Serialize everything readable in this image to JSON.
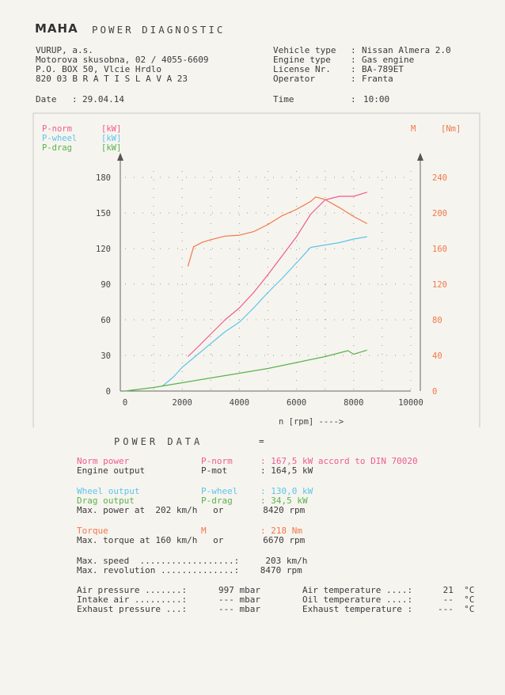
{
  "header": {
    "logo": "MAHA",
    "title": "POWER DIAGNOSTIC",
    "company": [
      "VURUP, a.s.",
      "Motorova skusobna, 02 / 4055-6609",
      "P.O. BOX 50, Vlcie Hrdlo",
      "820 03 B R A T I S L A V A 23"
    ],
    "date_label": "Date",
    "date_value": "29.04.14",
    "vehicle_fields": [
      {
        "label": "Vehicle type",
        "value": "Nissan Almera 2.0"
      },
      {
        "label": "Engine type",
        "value": "Gas engine"
      },
      {
        "label": "License Nr.",
        "value": "BA-789ET"
      },
      {
        "label": "Operator",
        "value": "Franta"
      }
    ],
    "time_label": "Time",
    "time_value": "10:00"
  },
  "chart_data": {
    "type": "line",
    "legend": [
      {
        "name": "P-norm",
        "unit": "[kW]",
        "color": "#ee5c8e"
      },
      {
        "name": "P-wheel",
        "unit": "[kW]",
        "color": "#5cc5ea"
      },
      {
        "name": "P-drag",
        "unit": "[kW]",
        "color": "#59b34c"
      }
    ],
    "right_axis_label": "M",
    "right_axis_unit": "[Nm]",
    "xlabel": "n [rpm] ---->",
    "xlim": [
      0,
      10000
    ],
    "ylim_left": [
      0,
      180
    ],
    "ylim_right": [
      0,
      240
    ],
    "x_ticks": [
      "0",
      "2000",
      "4000",
      "6000",
      "8000",
      "10000"
    ],
    "y_ticks_left": [
      "0",
      "30",
      "60",
      "90",
      "120",
      "150",
      "180"
    ],
    "y_ticks_right": [
      "0",
      "40",
      "80",
      "120",
      "160",
      "200",
      "240"
    ],
    "grid": "dotted",
    "series": [
      {
        "name": "P-norm",
        "axis": "left",
        "color": "#ee5c8e",
        "x": [
          2200,
          2500,
          3000,
          3500,
          4000,
          4500,
          5000,
          5500,
          6000,
          6500,
          7000,
          7500,
          8000,
          8470
        ],
        "y": [
          29,
          36,
          48,
          60,
          70,
          83,
          98,
          114,
          130,
          149,
          161,
          164,
          164,
          167.5
        ]
      },
      {
        "name": "P-wheel",
        "axis": "left",
        "color": "#5cc5ea",
        "x": [
          1300,
          1700,
          2000,
          2500,
          3000,
          3500,
          4000,
          4500,
          5000,
          5500,
          6000,
          6500,
          7000,
          7500,
          8000,
          8470
        ],
        "y": [
          4,
          12,
          20,
          30,
          40,
          50,
          58,
          70,
          83,
          95,
          108,
          121,
          123,
          125,
          128,
          130
        ]
      },
      {
        "name": "P-drag",
        "axis": "left",
        "color": "#59b34c",
        "x": [
          0,
          1000,
          2000,
          3000,
          4000,
          5000,
          6000,
          7000,
          7800,
          8000,
          8470
        ],
        "y": [
          0,
          3,
          7,
          11,
          15,
          19,
          24,
          29,
          34,
          31,
          34.5
        ]
      },
      {
        "name": "M",
        "axis": "right",
        "color": "#f0784b",
        "x": [
          2200,
          2400,
          2700,
          3000,
          3500,
          4000,
          4500,
          5000,
          5500,
          6000,
          6500,
          6670,
          7000,
          7500,
          8000,
          8470
        ],
        "y": [
          140,
          162,
          167,
          170,
          174,
          175,
          179,
          187,
          197,
          204,
          213,
          218,
          215,
          206,
          196,
          188
        ]
      }
    ]
  },
  "power_data": {
    "title": "POWER DATA",
    "eq": "=",
    "rows": [
      {
        "label": "Norm power",
        "sym": "P-norm",
        "value": ": 167,5 kW accord to DIN 70020",
        "style": "pink"
      },
      {
        "label": "Engine output",
        "sym": "P-mot",
        "value": ": 164,5 kW",
        "style": "plain"
      },
      {
        "label": "Wheel output",
        "sym": "P-wheel",
        "value": ": 130,0 kW",
        "style": "cyan"
      },
      {
        "label": "Drag output",
        "sym": "P-drag",
        "value": ": 34,5 kW",
        "style": "green"
      },
      {
        "label": "Max. power at  202 km/h   or",
        "sym": "",
        "value": "  8420 rpm",
        "style": "plain"
      },
      {
        "label": "Torque",
        "sym": "M",
        "value": ": 218 Nm",
        "style": "orange"
      },
      {
        "label": "Max. torque at 160 km/h   or",
        "sym": "",
        "value": "  6670 rpm",
        "style": "plain"
      }
    ],
    "max_speed": "Max. speed  ..................:     203 km/h",
    "max_rev": "Max. revolution ..............:    8470 rpm"
  },
  "env": {
    "left": [
      {
        "label": "Air pressure .......:",
        "value": "997 mbar"
      },
      {
        "label": "Intake air .........:",
        "value": "--- mbar"
      },
      {
        "label": "Exhaust pressure ...:",
        "value": "--- mbar"
      }
    ],
    "right": [
      {
        "label": "Air temperature ....:",
        "value": " 21  °C"
      },
      {
        "label": "Oil temperature ....:",
        "value": " --  °C"
      },
      {
        "label": "Exhaust temperature :",
        "value": "---  °C"
      }
    ]
  }
}
